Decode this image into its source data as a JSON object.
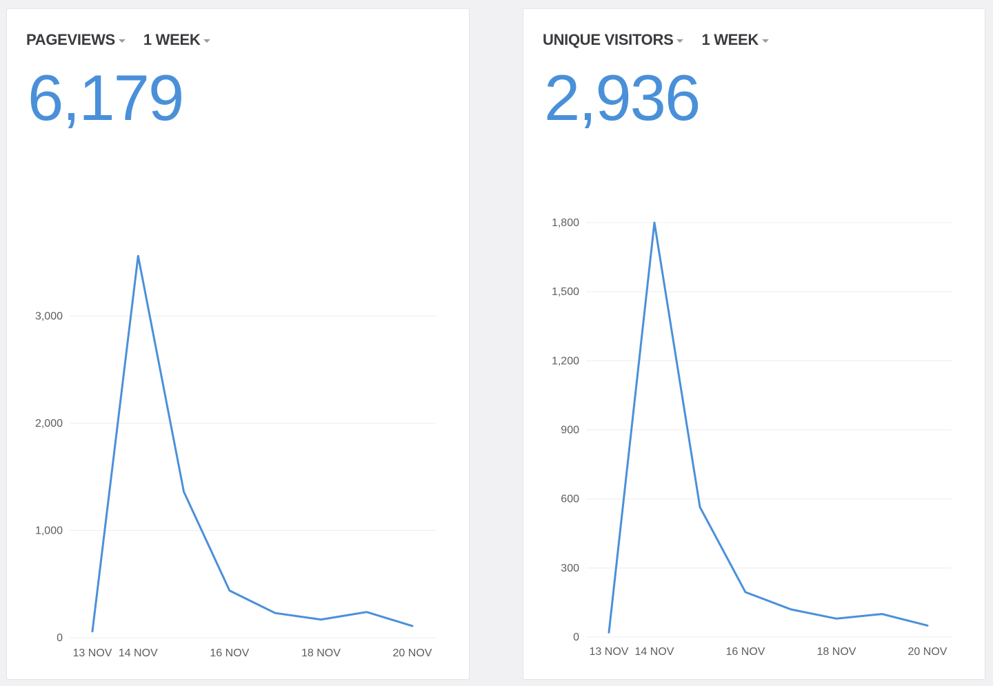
{
  "panels": [
    {
      "metric_label": "PAGEVIEWS",
      "period_label": "1 WEEK",
      "total": "6,179"
    },
    {
      "metric_label": "UNIQUE VISITORS",
      "period_label": "1 WEEK",
      "total": "2,936"
    }
  ],
  "colors": {
    "accent": "#4a90d9",
    "text": "#3b3b3f",
    "grid": "#ececef",
    "background": "#f1f1f3"
  },
  "chart_data": [
    {
      "type": "line",
      "x": [
        "13 NOV",
        "14 NOV",
        "15 NOV",
        "16 NOV",
        "17 NOV",
        "18 NOV",
        "19 NOV",
        "20 NOV"
      ],
      "tick_labels": [
        "13 NOV",
        "14 NOV",
        "16 NOV",
        "18 NOV",
        "20 NOV"
      ],
      "values": [
        60,
        3560,
        1360,
        440,
        230,
        170,
        240,
        110
      ],
      "ylim": [
        0,
        3600
      ],
      "yticks": [
        0,
        1000,
        2000,
        3000
      ],
      "ytick_labels": [
        "0",
        "1,000",
        "2,000",
        "3,000"
      ],
      "grid": true
    },
    {
      "type": "line",
      "x": [
        "13 NOV",
        "14 NOV",
        "15 NOV",
        "16 NOV",
        "17 NOV",
        "18 NOV",
        "19 NOV",
        "20 NOV"
      ],
      "tick_labels": [
        "13 NOV",
        "14 NOV",
        "16 NOV",
        "18 NOV",
        "20 NOV"
      ],
      "values": [
        20,
        1800,
        565,
        195,
        120,
        80,
        100,
        50
      ],
      "ylim": [
        0,
        1800
      ],
      "yticks": [
        0,
        300,
        600,
        900,
        1200,
        1500,
        1800
      ],
      "ytick_labels": [
        "0",
        "300",
        "600",
        "900",
        "1,200",
        "1,500",
        "1,800"
      ],
      "grid": true
    }
  ]
}
